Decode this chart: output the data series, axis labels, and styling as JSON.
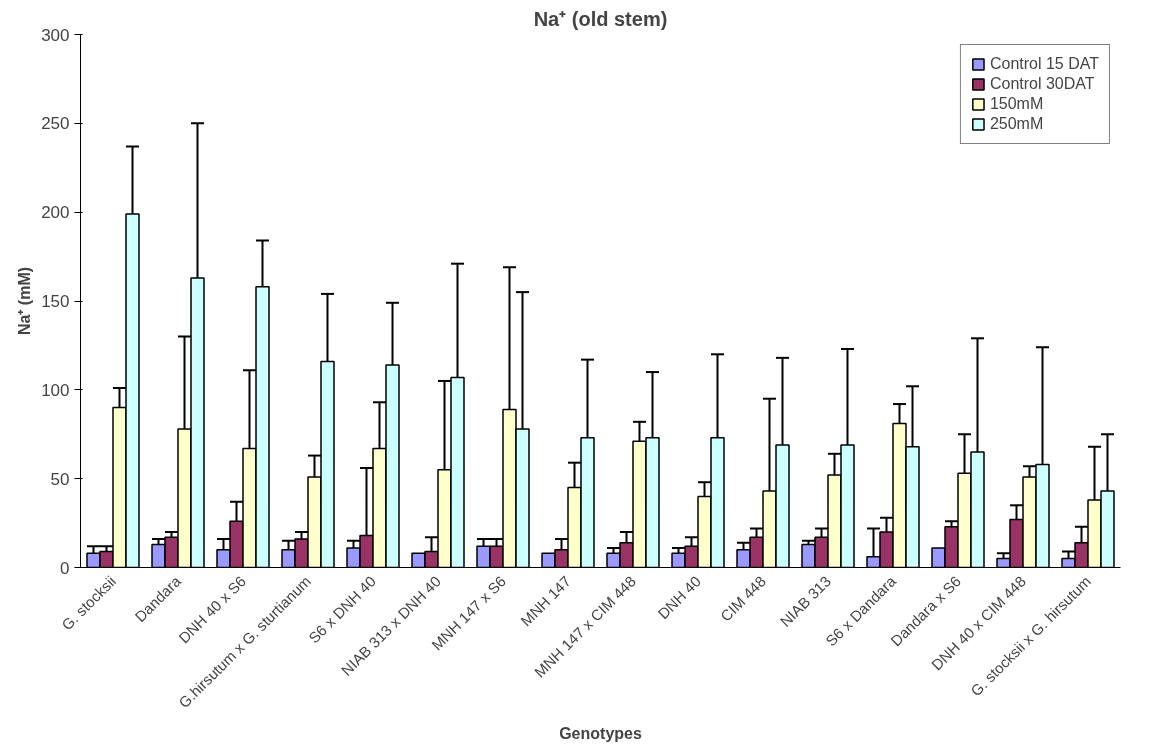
{
  "chart_data": {
    "type": "bar",
    "title": "Na⁺ (old stem)",
    "xlabel": "Genotypes",
    "ylabel": "Na⁺ (mM)",
    "categories": [
      "G. stocksii",
      "Dandara",
      "DNH 40 x S6",
      "G.hirsutum x G. sturtianum",
      "S6 x DNH 40",
      "NIAB 313 x DNH 40",
      "MNH 147 x S6",
      "MNH 147",
      "MNH 147 x CIM 448",
      "DNH 40",
      "CIM 448",
      "NIAB 313",
      "S6 x Dandara",
      "Dandara x S6",
      "DNH 40 x CIM 448",
      "G. stocksii x G. hirsutum"
    ],
    "ylim": [
      0,
      300
    ],
    "yticks": [
      0,
      50,
      100,
      150,
      200,
      250,
      300
    ],
    "grid": false,
    "legend": "top right",
    "series": [
      {
        "name": "Control 15 DAT",
        "color": "#9999ff",
        "values": [
          8,
          13,
          10,
          10,
          11,
          8,
          12,
          8,
          8,
          8,
          10,
          13,
          6,
          11,
          5,
          5
        ],
        "errors": [
          [
            8,
            12
          ],
          [
            13,
            16
          ],
          [
            10,
            16
          ],
          [
            10,
            15
          ],
          [
            11,
            15
          ],
          null,
          [
            12,
            16
          ],
          null,
          [
            8,
            11
          ],
          [
            8,
            11
          ],
          [
            10,
            14
          ],
          [
            13,
            15
          ],
          [
            6,
            22
          ],
          null,
          [
            5,
            8
          ],
          [
            5,
            9
          ]
        ]
      },
      {
        "name": "Control 30DAT",
        "color": "#993366",
        "values": [
          9,
          17,
          26,
          16,
          18,
          9,
          12,
          10,
          14,
          12,
          17,
          17,
          20,
          23,
          27,
          14
        ],
        "errors": [
          [
            9,
            12
          ],
          [
            17,
            20
          ],
          [
            26,
            37
          ],
          [
            16,
            20
          ],
          [
            18,
            56
          ],
          [
            9,
            17
          ],
          [
            12,
            16
          ],
          [
            10,
            16
          ],
          [
            14,
            20
          ],
          [
            12,
            17
          ],
          [
            17,
            22
          ],
          [
            17,
            22
          ],
          [
            20,
            28
          ],
          [
            23,
            26
          ],
          [
            27,
            35
          ],
          [
            14,
            23
          ]
        ]
      },
      {
        "name": "150mM",
        "color": "#ffffcc",
        "values": [
          90,
          78,
          67,
          51,
          67,
          55,
          89,
          45,
          71,
          40,
          43,
          52,
          81,
          53,
          51,
          38
        ],
        "errors": [
          [
            90,
            101
          ],
          [
            78,
            130
          ],
          [
            67,
            111
          ],
          [
            51,
            63
          ],
          [
            67,
            93
          ],
          [
            55,
            105
          ],
          [
            89,
            169
          ],
          [
            45,
            59
          ],
          [
            71,
            82
          ],
          [
            40,
            48
          ],
          [
            43,
            95
          ],
          [
            52,
            64
          ],
          [
            81,
            92
          ],
          [
            53,
            75
          ],
          [
            51,
            57
          ],
          [
            38,
            68
          ]
        ]
      },
      {
        "name": "250mM",
        "color": "#ccffff",
        "values": [
          199,
          163,
          158,
          116,
          114,
          107,
          78,
          73,
          73,
          73,
          69,
          69,
          68,
          65,
          58,
          43
        ],
        "errors": [
          [
            199,
            237
          ],
          [
            163,
            250
          ],
          [
            158,
            184
          ],
          [
            116,
            154
          ],
          [
            114,
            149
          ],
          [
            107,
            171
          ],
          [
            78,
            155
          ],
          [
            73,
            117
          ],
          [
            73,
            110
          ],
          [
            73,
            120
          ],
          [
            69,
            118
          ],
          [
            69,
            123
          ],
          [
            68,
            102
          ],
          [
            65,
            129
          ],
          [
            58,
            124
          ],
          [
            43,
            75
          ]
        ]
      }
    ]
  }
}
